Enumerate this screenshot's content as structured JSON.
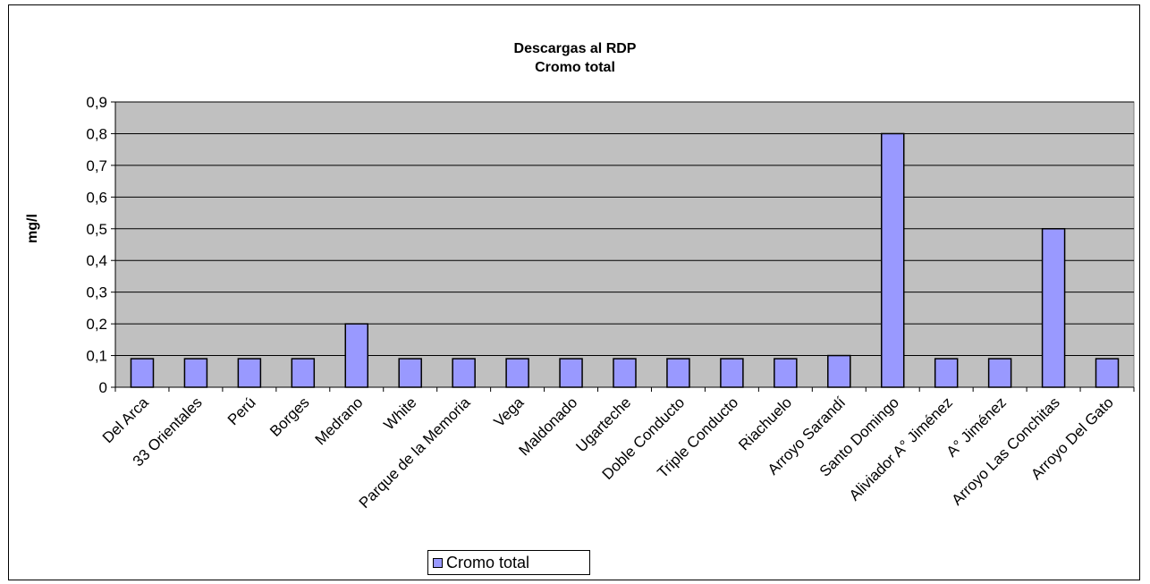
{
  "chart_data": {
    "type": "bar",
    "title": "Descargas al RDP",
    "subtitle": "Cromo total",
    "ylabel": "mg/l",
    "xlabel": "",
    "ylim": [
      0,
      0.9
    ],
    "yticks": [
      "0",
      "0,1",
      "0,2",
      "0,3",
      "0,4",
      "0,5",
      "0,6",
      "0,7",
      "0,8",
      "0,9"
    ],
    "grid": true,
    "legend_position": "bottom",
    "categories": [
      "Del  Arca",
      "33 Orientales",
      "Perú",
      "Borges",
      "Medrano",
      "White",
      "Parque de la Memoria",
      "Vega",
      "Maldonado",
      "Ugarteche",
      "Doble Conducto",
      "Triple Conducto",
      "Riachuelo",
      "Arroyo Sarandí",
      "Santo Domingo",
      "Aliviador A° Jiménez",
      "A° Jiménez",
      "Arroyo Las Conchitas",
      "Arroyo Del Gato"
    ],
    "series": [
      {
        "name": "Cromo total",
        "values": [
          0.09,
          0.09,
          0.09,
          0.09,
          0.2,
          0.09,
          0.09,
          0.09,
          0.09,
          0.09,
          0.09,
          0.09,
          0.09,
          0.1,
          0.8,
          0.09,
          0.09,
          0.5,
          0.09
        ]
      }
    ],
    "colors": {
      "plot_background": "#c0c0c0",
      "bar_fill": "#9999ff",
      "bar_stroke": "#000000",
      "gridline": "#000000"
    }
  }
}
